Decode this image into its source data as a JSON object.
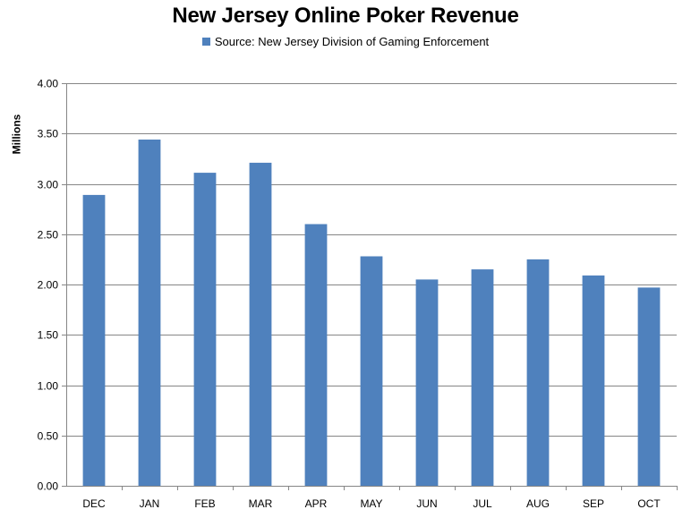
{
  "colors": {
    "bar": "#4f81bd",
    "grid": "#868686",
    "axis": "#868686"
  },
  "chart_data": {
    "type": "bar",
    "title": "New Jersey Online Poker Revenue",
    "legend_position": "top",
    "ylabel": "Millions",
    "xlabel": "",
    "grid": true,
    "ylim": [
      0,
      4
    ],
    "yticks": [
      "0.00",
      "0.50",
      "1.00",
      "1.50",
      "2.00",
      "2.50",
      "3.00",
      "3.50",
      "4.00"
    ],
    "categories": [
      "DEC",
      "JAN",
      "FEB",
      "MAR",
      "APR",
      "MAY",
      "JUN",
      "JUL",
      "AUG",
      "SEP",
      "OCT"
    ],
    "series": [
      {
        "name": "Source: New Jersey Division of Gaming Enforcement",
        "values": [
          2.89,
          3.44,
          3.11,
          3.21,
          2.6,
          2.28,
          2.05,
          2.15,
          2.25,
          2.09,
          1.97
        ]
      }
    ]
  }
}
